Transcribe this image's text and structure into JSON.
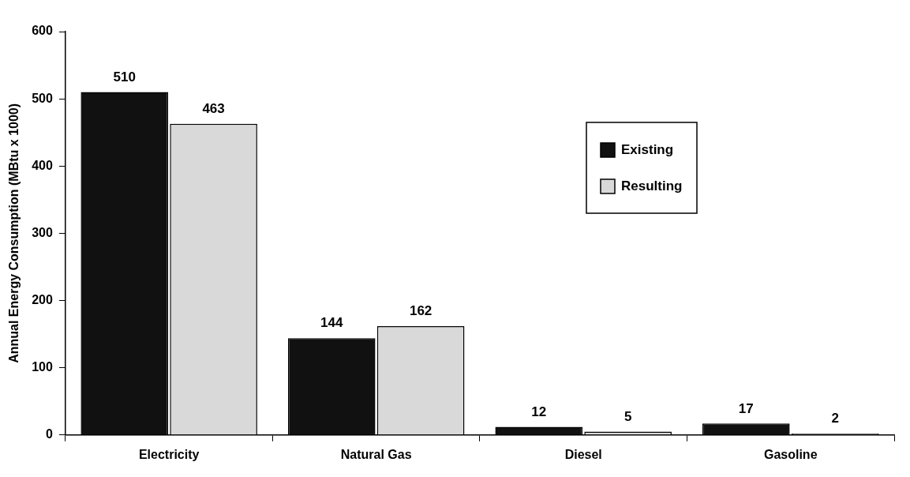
{
  "chart_data": {
    "type": "bar",
    "ylabel": "Annual Energy Consumption (MBtu x 1000)",
    "categories": [
      "Electricity",
      "Natural Gas",
      "Diesel",
      "Gasoline"
    ],
    "series": [
      {
        "name": "Existing",
        "color": "#111111",
        "values": [
          510,
          144,
          12,
          17
        ]
      },
      {
        "name": "Resulting",
        "color": "#d9d9d9",
        "values": [
          463,
          162,
          5,
          2
        ]
      }
    ],
    "ylim": [
      0,
      600
    ],
    "yticks": [
      0,
      100,
      200,
      300,
      400,
      500,
      600
    ],
    "data_labels": true,
    "legend": "top right"
  }
}
